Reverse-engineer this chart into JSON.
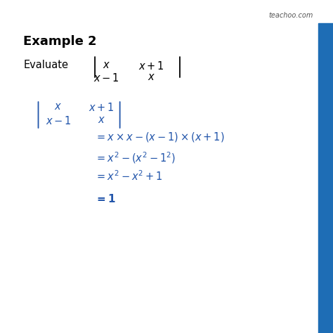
{
  "title": "Example 2",
  "watermark": "teachoo.com",
  "bg_color": "#ffffff",
  "title_color": "#000000",
  "blue_color": "#2255aa",
  "watermark_color": "#555555",
  "right_bar_color": "#1e6db5",
  "fig_width": 4.74,
  "fig_height": 4.74,
  "dpi": 100
}
